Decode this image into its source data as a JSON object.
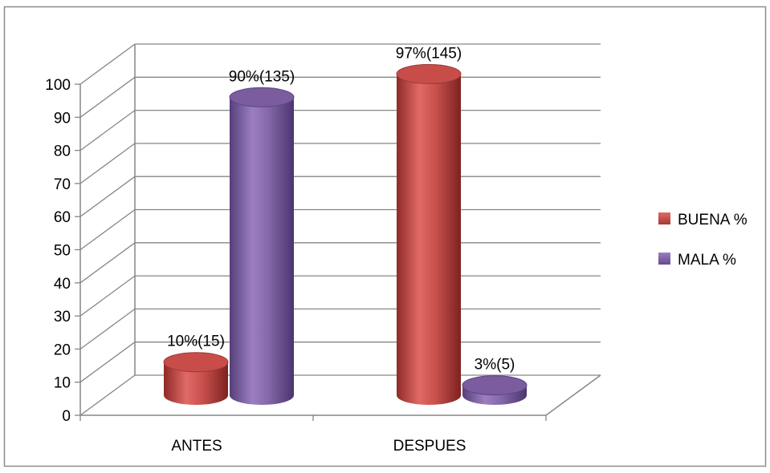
{
  "chart_data": {
    "type": "bar",
    "style": "3d-cylinder",
    "categories": [
      "ANTES",
      "DESPUES"
    ],
    "series": [
      {
        "name": "BUENA %",
        "color": "#c0504d",
        "values": [
          10,
          97
        ],
        "labels": [
          "10%(15)",
          "97%(145)"
        ]
      },
      {
        "name": "MALA %",
        "color": "#8064a2",
        "values": [
          90,
          3
        ],
        "labels": [
          "90%(135)",
          "3%(5)"
        ]
      }
    ],
    "ylim": [
      0,
      100
    ],
    "yticks": [
      "0",
      "10",
      "20",
      "30",
      "40",
      "50",
      "60",
      "70",
      "80",
      "90",
      "100"
    ],
    "grid": true,
    "legend_position": "right"
  }
}
